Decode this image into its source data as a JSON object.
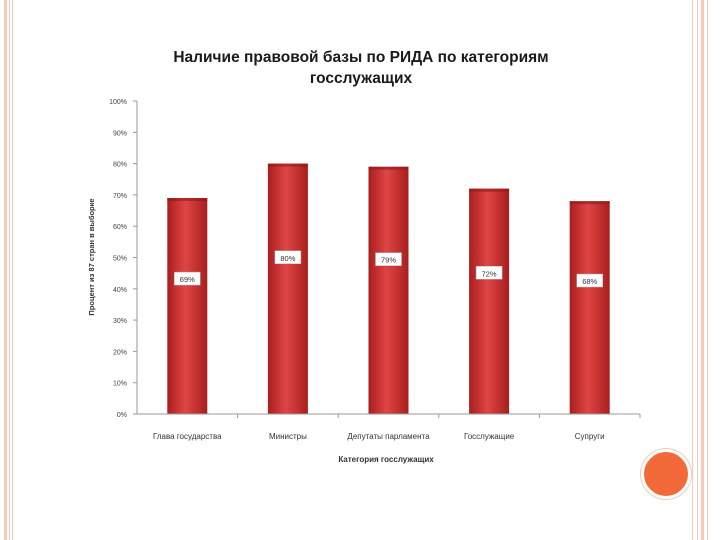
{
  "chart_data": {
    "type": "bar",
    "title": "Наличие правовой базы по РИДА по категориям госслужащих",
    "title_lines": [
      "Наличие правовой базы по РИДА по категориям",
      "госслужащих"
    ],
    "xlabel": "Категория госслужащих",
    "ylabel": "Процент из 87 стран в выборке",
    "categories": [
      "Глава государства",
      "Министры",
      "Депутаты парламента",
      "Госслужащие",
      "Супруги"
    ],
    "values": [
      69,
      80,
      79,
      72,
      68
    ],
    "data_labels": [
      "69%",
      "80%",
      "79%",
      "72%",
      "68%"
    ],
    "ylim": [
      0,
      100
    ],
    "y_ticks": [
      0,
      10,
      20,
      30,
      40,
      50,
      60,
      70,
      80,
      90,
      100
    ],
    "y_tick_labels": [
      "0%",
      "10%",
      "20%",
      "30%",
      "40%",
      "50%",
      "60%",
      "70%",
      "80%",
      "90%",
      "100%"
    ],
    "grid": false,
    "bar_color": "#d93a3a"
  },
  "theme": {
    "accent": "#f36a3a",
    "border": "#f6c9b8"
  }
}
